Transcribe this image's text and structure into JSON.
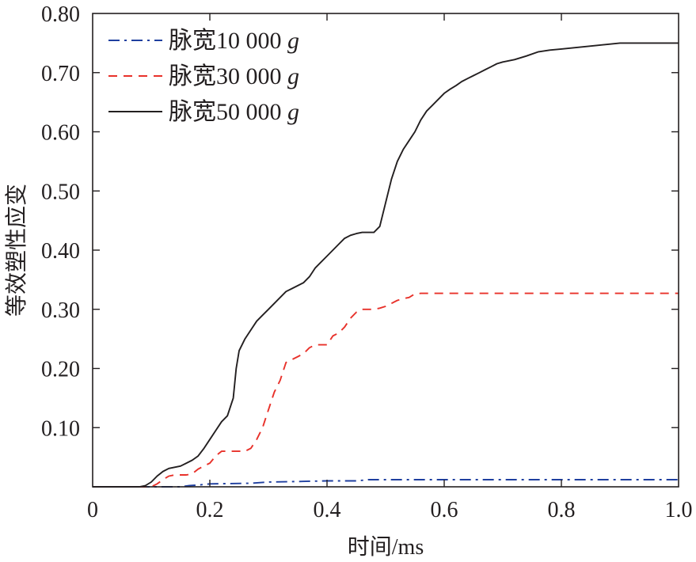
{
  "chart_data": {
    "type": "line",
    "xlabel": "时间/ms",
    "ylabel": "等效塑性应变",
    "xlim": [
      0,
      1.0
    ],
    "ylim": [
      0,
      0.8
    ],
    "xticks": [
      0,
      0.2,
      0.4,
      0.6,
      0.8,
      1.0
    ],
    "xtick_labels": [
      "0",
      "0.2",
      "0.4",
      "0.6",
      "0.8",
      "1.0"
    ],
    "yticks": [
      0.1,
      0.2,
      0.3,
      0.4,
      0.5,
      0.6,
      0.7,
      0.8
    ],
    "ytick_labels": [
      "0.10",
      "0.20",
      "0.30",
      "0.40",
      "0.50",
      "0.60",
      "0.70",
      "0.80"
    ],
    "grid": false,
    "legend_position": "top-left",
    "series": [
      {
        "name": "脉宽10 000 g",
        "label_main": "脉宽10 000 ",
        "label_unit": "g",
        "color": "#1f3f9f",
        "dash": "dashdot",
        "x": [
          0,
          0.15,
          0.165,
          0.18,
          0.2,
          0.27,
          0.3,
          0.35,
          0.4,
          0.45,
          0.46,
          0.47,
          0.5,
          0.6,
          0.7,
          0.8,
          0.9,
          1.0
        ],
        "y": [
          0,
          0,
          0.002,
          0.003,
          0.005,
          0.006,
          0.008,
          0.009,
          0.01,
          0.01,
          0.011,
          0.012,
          0.012,
          0.012,
          0.012,
          0.012,
          0.012,
          0.012
        ]
      },
      {
        "name": "脉宽30 000 g",
        "label_main": "脉宽30 000 ",
        "label_unit": "g",
        "color": "#e8312a",
        "dash": "dashed",
        "x": [
          0,
          0.1,
          0.11,
          0.12,
          0.13,
          0.14,
          0.15,
          0.16,
          0.17,
          0.18,
          0.19,
          0.2,
          0.21,
          0.22,
          0.23,
          0.24,
          0.25,
          0.26,
          0.27,
          0.28,
          0.29,
          0.3,
          0.31,
          0.32,
          0.33,
          0.34,
          0.35,
          0.36,
          0.37,
          0.38,
          0.39,
          0.4,
          0.41,
          0.42,
          0.43,
          0.44,
          0.45,
          0.46,
          0.47,
          0.48,
          0.49,
          0.5,
          0.51,
          0.52,
          0.53,
          0.54,
          0.55,
          0.56,
          0.6,
          0.7,
          0.8,
          0.9,
          1.0
        ],
        "y": [
          0,
          0,
          0.005,
          0.012,
          0.018,
          0.02,
          0.02,
          0.02,
          0.022,
          0.03,
          0.035,
          0.04,
          0.052,
          0.06,
          0.06,
          0.06,
          0.06,
          0.06,
          0.065,
          0.08,
          0.1,
          0.13,
          0.16,
          0.18,
          0.21,
          0.215,
          0.22,
          0.225,
          0.235,
          0.24,
          0.24,
          0.24,
          0.255,
          0.26,
          0.27,
          0.285,
          0.295,
          0.3,
          0.3,
          0.3,
          0.302,
          0.305,
          0.31,
          0.315,
          0.318,
          0.32,
          0.326,
          0.327,
          0.327,
          0.327,
          0.327,
          0.327,
          0.327
        ]
      },
      {
        "name": "脉宽50 000 g",
        "label_main": "脉宽50 000 ",
        "label_unit": "g",
        "color": "#231f20",
        "dash": "solid",
        "x": [
          0,
          0.08,
          0.09,
          0.1,
          0.11,
          0.12,
          0.13,
          0.14,
          0.15,
          0.16,
          0.17,
          0.18,
          0.19,
          0.2,
          0.21,
          0.22,
          0.23,
          0.24,
          0.245,
          0.25,
          0.26,
          0.27,
          0.28,
          0.29,
          0.3,
          0.31,
          0.32,
          0.33,
          0.34,
          0.35,
          0.36,
          0.37,
          0.38,
          0.39,
          0.4,
          0.41,
          0.42,
          0.43,
          0.44,
          0.45,
          0.46,
          0.47,
          0.48,
          0.49,
          0.5,
          0.51,
          0.52,
          0.53,
          0.54,
          0.55,
          0.56,
          0.57,
          0.58,
          0.59,
          0.6,
          0.61,
          0.62,
          0.63,
          0.64,
          0.65,
          0.66,
          0.67,
          0.68,
          0.69,
          0.7,
          0.72,
          0.74,
          0.76,
          0.78,
          0.8,
          0.82,
          0.84,
          0.86,
          0.88,
          0.9,
          0.95,
          1.0
        ],
        "y": [
          0,
          0,
          0.002,
          0.008,
          0.018,
          0.026,
          0.031,
          0.033,
          0.035,
          0.04,
          0.045,
          0.052,
          0.065,
          0.08,
          0.095,
          0.11,
          0.12,
          0.15,
          0.2,
          0.23,
          0.25,
          0.265,
          0.28,
          0.29,
          0.3,
          0.31,
          0.32,
          0.33,
          0.335,
          0.34,
          0.345,
          0.355,
          0.37,
          0.38,
          0.39,
          0.4,
          0.41,
          0.42,
          0.425,
          0.428,
          0.43,
          0.43,
          0.43,
          0.44,
          0.48,
          0.52,
          0.55,
          0.57,
          0.585,
          0.6,
          0.62,
          0.635,
          0.645,
          0.655,
          0.665,
          0.672,
          0.678,
          0.685,
          0.69,
          0.695,
          0.7,
          0.705,
          0.71,
          0.715,
          0.718,
          0.722,
          0.728,
          0.735,
          0.738,
          0.74,
          0.742,
          0.744,
          0.746,
          0.748,
          0.75,
          0.75,
          0.75
        ]
      }
    ]
  }
}
